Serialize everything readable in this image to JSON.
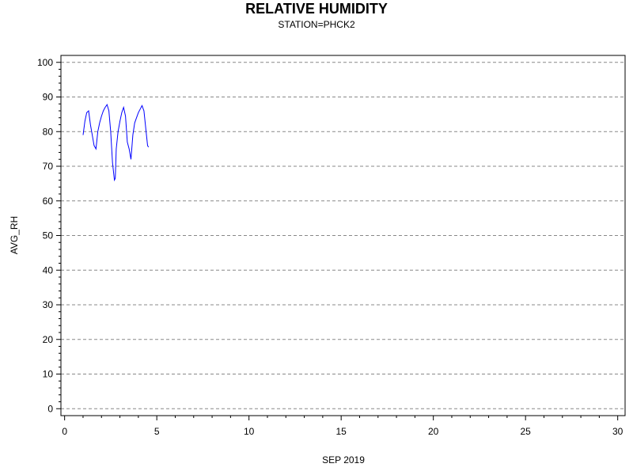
{
  "chart_data": {
    "type": "line",
    "title": "RELATIVE HUMIDITY",
    "subtitle": "STATION=PHCK2",
    "xlabel": "SEP 2019",
    "ylabel": "AVG_RH",
    "xlim": [
      -0.2,
      30.4
    ],
    "ylim": [
      -2,
      102
    ],
    "x_ticks": [
      0,
      5,
      10,
      15,
      20,
      25,
      30
    ],
    "y_ticks": [
      0,
      10,
      20,
      30,
      40,
      50,
      60,
      70,
      80,
      90,
      100
    ],
    "grid": "horizontal-dashed",
    "line_color": "#0000ff",
    "series": [
      {
        "x": [
          1.0,
          1.1,
          1.2,
          1.3,
          1.4,
          1.5,
          1.6,
          1.7,
          1.8,
          1.9,
          2.0,
          2.1,
          2.2,
          2.3,
          2.4,
          2.5,
          2.6,
          2.7,
          2.75,
          2.8,
          2.9,
          3.0,
          3.1,
          3.2,
          3.3,
          3.4,
          3.5,
          3.6,
          3.7,
          3.8,
          3.9,
          4.0,
          4.1,
          4.2,
          4.3,
          4.4,
          4.5,
          4.55
        ],
        "y": [
          79,
          83,
          85.5,
          86,
          82,
          79,
          76,
          75,
          80,
          82.5,
          84.5,
          86,
          87,
          87.8,
          86,
          80,
          71,
          66,
          66.5,
          75,
          80,
          83,
          85.5,
          87,
          84.5,
          77,
          75,
          72,
          79,
          82.5,
          84,
          85.5,
          86.5,
          87.5,
          86,
          81,
          76,
          75.5
        ]
      }
    ]
  }
}
